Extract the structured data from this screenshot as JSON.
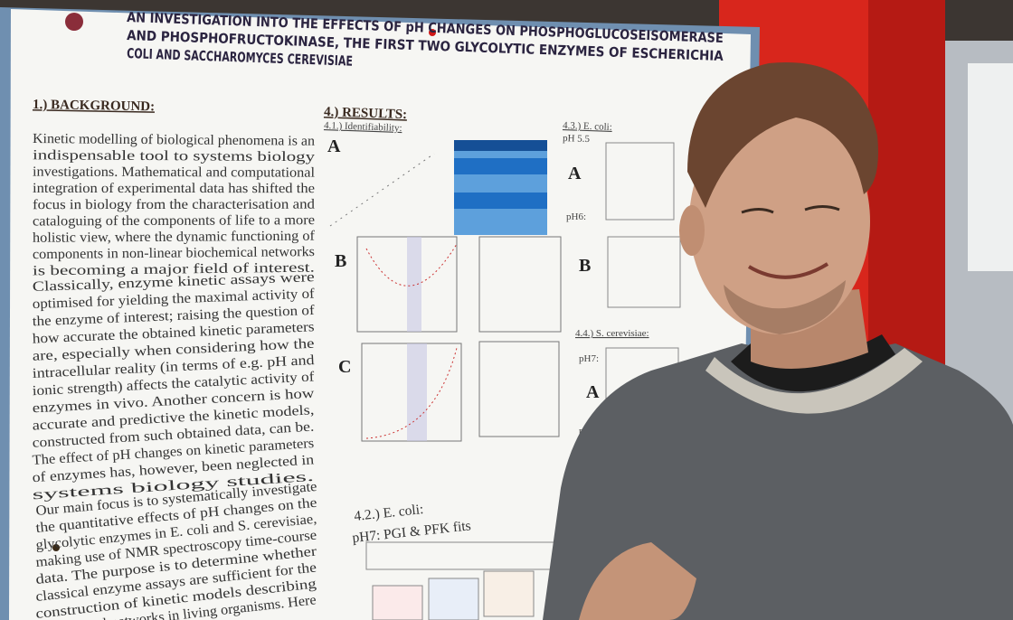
{
  "poster": {
    "title_lines": [
      "AN INVESTIGATION INTO THE EFFECTS OF pH CHANGES ON PHOSPHOGLUCOSEISOMERASE",
      "AND PHOSPHOFRUCTOKINASE, THE FIRST TWO GLYCOLYTIC ENZYMES OF ESCHERICHIA",
      "COLI AND SACCHAROMYCES CEREVISIAE"
    ],
    "background": {
      "heading": "1.) BACKGROUND:",
      "paragraphs": [
        [
          "Kinetic modelling of biological phenomena is an",
          "indispensable tool to systems biology",
          "investigations. Mathematical and computational",
          "integration of experimental data has shifted the",
          "focus in biology from the characterisation and",
          "cataloguing of the components of life to a more",
          "holistic view, where the dynamic functioning of",
          "components in non-linear biochemical networks",
          "is becoming a major field of interest."
        ],
        [
          "Classically, enzyme kinetic assays were",
          "optimised for yielding the maximal activity of",
          "the enzyme of interest; raising the question of",
          "how accurate the obtained kinetic parameters",
          "are, especially when considering how the",
          "intracellular reality (in terms of e.g. pH and",
          "ionic strength) affects the catalytic activity of",
          "enzymes in vivo. Another concern is how",
          "accurate and predictive the kinetic models,",
          "constructed from such obtained data, can be.",
          "The effect of pH changes on kinetic parameters",
          "of enzymes has, however, been neglected in",
          "systems biology studies."
        ],
        [
          "Our main focus is to systematically investigate",
          "the quantitative effects of pH changes on the",
          "glycolytic enzymes in E. coli and S. cerevisiae,",
          "making use of NMR spectroscopy time-course",
          "data. The purpose is to determine whether",
          "classical enzyme assays are sufficient for the",
          "construction of kinetic models describing",
          "biochemical networks in living organisms. Here"
        ]
      ]
    },
    "results": {
      "heading": "4.) RESULTS:",
      "identifiability": "4.1.) Identifiability:",
      "panel_labels": [
        "A",
        "B",
        "C"
      ],
      "ecoli_fits_heading": "4.2.) E. coli:",
      "ecoli_fits_subtitle": "pH7: PGI & PFK fits",
      "ecoli_heading": "4.3.) E. coli:",
      "ecoli_ph1": "pH 5.5",
      "ecoli_label_a": "A",
      "ecoli_ph2": "pH6:",
      "ecoli_label_b": "B",
      "yeast_heading": "4.4.) S. cerevisiae:",
      "yeast_ph1": "pH7:",
      "yeast_label_a": "A",
      "yeast_ph2": "pH 5.5"
    }
  }
}
